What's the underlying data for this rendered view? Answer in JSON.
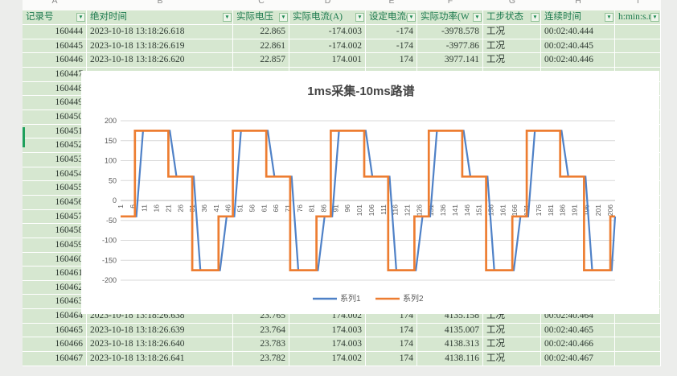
{
  "sheet": {
    "column_letters": [
      "A",
      "B",
      "C",
      "D",
      "E",
      "F",
      "G",
      "H",
      "I"
    ],
    "columns": [
      {
        "letter": "A",
        "label": "记录号",
        "width": 80,
        "align": "right"
      },
      {
        "letter": "B",
        "label": "绝对时间",
        "width": 182,
        "align": "left"
      },
      {
        "letter": "C",
        "label": "实际电压",
        "width": 70,
        "align": "right"
      },
      {
        "letter": "D",
        "label": "实际电流(A)",
        "width": 95,
        "align": "right"
      },
      {
        "letter": "E",
        "label": "设定电流(",
        "width": 64,
        "align": "right"
      },
      {
        "letter": "F",
        "label": "实际功率(W",
        "width": 82,
        "align": "right"
      },
      {
        "letter": "G",
        "label": "工步状态",
        "width": 72,
        "align": "left"
      },
      {
        "letter": "H",
        "label": "连续时间",
        "width": 92,
        "align": "left"
      },
      {
        "letter": "I",
        "label": "h:min:s.ms",
        "width": 57,
        "align": "left"
      }
    ],
    "filter_icon": "▼",
    "rows_top": [
      [
        "160444",
        "2023-10-18 13:18:26.618",
        "22.865",
        "-174.003",
        "-174",
        "-3978.578",
        "工况",
        "00:02:40.444",
        ""
      ],
      [
        "160445",
        "2023-10-18 13:18:26.619",
        "22.861",
        "-174.002",
        "-174",
        "-3977.86",
        "工况",
        "00:02:40.445",
        ""
      ],
      [
        "160446",
        "2023-10-18 13:18:26.620",
        "22.857",
        "174.001",
        "174",
        "3977.141",
        "工况",
        "00:02:40.446",
        ""
      ]
    ],
    "rows_hidden_records": [
      "160447",
      "160448",
      "160449",
      "160450",
      "160451",
      "160452",
      "160453",
      "160454",
      "160455",
      "160456",
      "160457",
      "160458",
      "160459",
      "160460",
      "160461",
      "160462",
      "160463"
    ],
    "rows_bottom": [
      [
        "160464",
        "2023-10-18 13:18:26.638",
        "23.765",
        "174.002",
        "174",
        "4135.158",
        "工况",
        "00:02:40.464",
        ""
      ],
      [
        "160465",
        "2023-10-18 13:18:26.639",
        "23.764",
        "174.003",
        "174",
        "4135.007",
        "工况",
        "00:02:40.465",
        ""
      ],
      [
        "160466",
        "2023-10-18 13:18:26.640",
        "23.783",
        "174.003",
        "174",
        "4138.313",
        "工况",
        "00:02:40.466",
        ""
      ],
      [
        "160467",
        "2023-10-18 13:18:26.641",
        "23.782",
        "174.002",
        "174",
        "4138.116",
        "工况",
        "00:02:40.467",
        ""
      ]
    ],
    "colors": {
      "cell_bg": "#d6e7d0",
      "header_text": "#1c7a4e",
      "cell_text": "#2e3a32",
      "gridline": "#ffffff",
      "margin_bg": "#ecedeb",
      "selection_green": "#1fa05c"
    }
  },
  "chart_data": {
    "type": "line",
    "title": "1ms采集-10ms路谱",
    "xlabel": "",
    "ylabel": "",
    "x_tick_start": 1,
    "x_tick_step": 5,
    "x_tick_end": 206,
    "x_range": [
      1,
      208
    ],
    "ylim": [
      -200,
      200
    ],
    "y_tick_step": 50,
    "grid": true,
    "legend_position": "bottom",
    "colors": {
      "gridline": "#d9d9d9",
      "axis": "#b7b7b7",
      "tick_text": "#595959",
      "title_text": "#444444"
    },
    "series": [
      {
        "name": "系列1",
        "color": "#4f81c7",
        "style": "ramped",
        "ramp_units": 3
      },
      {
        "name": "系列2",
        "color": "#ed7d31",
        "style": "step"
      }
    ],
    "step_segments": [
      {
        "from": 1,
        "to": 7,
        "value": -40
      },
      {
        "from": 7,
        "to": 21,
        "value": 175
      },
      {
        "from": 21,
        "to": 31,
        "value": 60
      },
      {
        "from": 31,
        "to": 42,
        "value": -175
      },
      {
        "from": 42,
        "to": 48,
        "value": -40
      },
      {
        "from": 48,
        "to": 62,
        "value": 175
      },
      {
        "from": 62,
        "to": 72,
        "value": 60
      },
      {
        "from": 72,
        "to": 83,
        "value": -175
      },
      {
        "from": 83,
        "to": 89,
        "value": -40
      },
      {
        "from": 89,
        "to": 103,
        "value": 175
      },
      {
        "from": 103,
        "to": 113,
        "value": 60
      },
      {
        "from": 113,
        "to": 124,
        "value": -175
      },
      {
        "from": 124,
        "to": 130,
        "value": -40
      },
      {
        "from": 130,
        "to": 144,
        "value": 175
      },
      {
        "from": 144,
        "to": 154,
        "value": 60
      },
      {
        "from": 154,
        "to": 165,
        "value": -175
      },
      {
        "from": 165,
        "to": 171,
        "value": -40
      },
      {
        "from": 171,
        "to": 185,
        "value": 175
      },
      {
        "from": 185,
        "to": 195,
        "value": 60
      },
      {
        "from": 195,
        "to": 206,
        "value": -175
      },
      {
        "from": 206,
        "to": 208,
        "value": -40
      }
    ]
  }
}
